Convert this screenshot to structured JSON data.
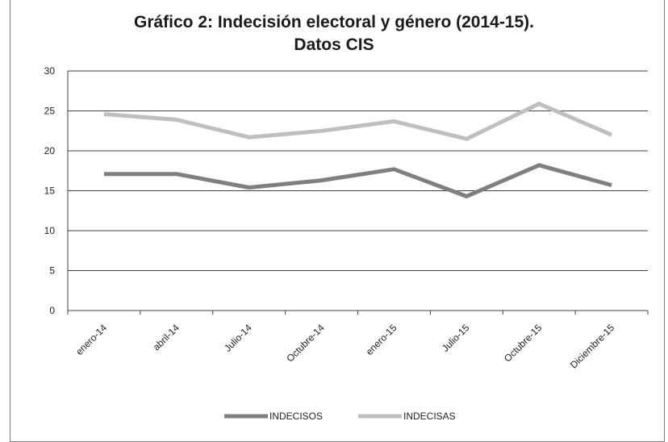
{
  "chart_data": {
    "type": "line",
    "title": "Gráfico 2: Indecisión electoral y género (2014-15).",
    "subtitle": "Datos CIS",
    "categories": [
      "enero-14",
      "abril-14",
      "Julio-14",
      "Octubre-14",
      "enero-15",
      "Julio-15",
      "Octubre-15",
      "Diciembre-15"
    ],
    "series": [
      {
        "name": "INDECISOS",
        "color": "#7f7f7f",
        "values": [
          17.1,
          17.1,
          15.4,
          16.3,
          17.7,
          14.3,
          18.2,
          15.7
        ]
      },
      {
        "name": "INDECISAS",
        "color": "#bfbfbf",
        "values": [
          24.6,
          23.9,
          21.7,
          22.5,
          23.7,
          21.5,
          25.9,
          22.0
        ]
      }
    ],
    "yticks": [
      "0",
      "5",
      "10",
      "15",
      "20",
      "25",
      "30"
    ],
    "ylim": [
      0,
      30
    ],
    "grid": true,
    "legend": "bottom"
  }
}
